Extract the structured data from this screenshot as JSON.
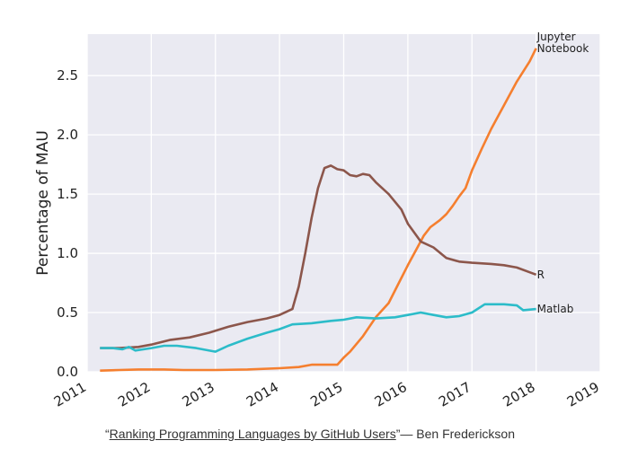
{
  "chart_data": {
    "type": "line",
    "title": "",
    "xlabel": "",
    "ylabel": "Percentage of MAU",
    "xlim": [
      2011,
      2019
    ],
    "ylim": [
      0,
      2.85
    ],
    "xticks": [
      "2011",
      "2012",
      "2013",
      "2014",
      "2015",
      "2016",
      "2017",
      "2018",
      "2019"
    ],
    "yticks": [
      "0.0",
      "0.5",
      "1.0",
      "1.5",
      "2.0",
      "2.5"
    ],
    "grid": true,
    "background": "#eaeaf2",
    "series": [
      {
        "name": "Jupyter Notebook",
        "label_lines": [
          "Jupyter",
          "Notebook"
        ],
        "color": "#f57f2f",
        "points": [
          [
            2011.2,
            0.01
          ],
          [
            2011.5,
            0.015
          ],
          [
            2011.8,
            0.02
          ],
          [
            2012.2,
            0.02
          ],
          [
            2012.5,
            0.015
          ],
          [
            2013.0,
            0.015
          ],
          [
            2013.5,
            0.02
          ],
          [
            2014.0,
            0.03
          ],
          [
            2014.3,
            0.04
          ],
          [
            2014.5,
            0.06
          ],
          [
            2014.75,
            0.06
          ],
          [
            2014.9,
            0.06
          ],
          [
            2015.0,
            0.12
          ],
          [
            2015.1,
            0.17
          ],
          [
            2015.3,
            0.3
          ],
          [
            2015.5,
            0.46
          ],
          [
            2015.7,
            0.58
          ],
          [
            2015.85,
            0.74
          ],
          [
            2016.0,
            0.9
          ],
          [
            2016.15,
            1.05
          ],
          [
            2016.25,
            1.15
          ],
          [
            2016.35,
            1.22
          ],
          [
            2016.5,
            1.28
          ],
          [
            2016.6,
            1.33
          ],
          [
            2016.7,
            1.4
          ],
          [
            2016.8,
            1.48
          ],
          [
            2016.9,
            1.55
          ],
          [
            2017.0,
            1.7
          ],
          [
            2017.15,
            1.88
          ],
          [
            2017.3,
            2.05
          ],
          [
            2017.5,
            2.25
          ],
          [
            2017.7,
            2.45
          ],
          [
            2017.9,
            2.62
          ],
          [
            2018.0,
            2.73
          ]
        ]
      },
      {
        "name": "R",
        "label_lines": [
          "R"
        ],
        "color": "#8c564b",
        "points": [
          [
            2011.2,
            0.2
          ],
          [
            2011.5,
            0.2
          ],
          [
            2011.8,
            0.21
          ],
          [
            2012.0,
            0.23
          ],
          [
            2012.3,
            0.27
          ],
          [
            2012.6,
            0.29
          ],
          [
            2012.9,
            0.33
          ],
          [
            2013.2,
            0.38
          ],
          [
            2013.5,
            0.42
          ],
          [
            2013.8,
            0.45
          ],
          [
            2014.0,
            0.48
          ],
          [
            2014.2,
            0.53
          ],
          [
            2014.3,
            0.72
          ],
          [
            2014.4,
            1.0
          ],
          [
            2014.5,
            1.3
          ],
          [
            2014.6,
            1.55
          ],
          [
            2014.7,
            1.72
          ],
          [
            2014.8,
            1.74
          ],
          [
            2014.9,
            1.71
          ],
          [
            2015.0,
            1.7
          ],
          [
            2015.1,
            1.66
          ],
          [
            2015.2,
            1.65
          ],
          [
            2015.3,
            1.67
          ],
          [
            2015.4,
            1.66
          ],
          [
            2015.5,
            1.6
          ],
          [
            2015.7,
            1.5
          ],
          [
            2015.9,
            1.37
          ],
          [
            2016.0,
            1.25
          ],
          [
            2016.2,
            1.1
          ],
          [
            2016.4,
            1.05
          ],
          [
            2016.6,
            0.96
          ],
          [
            2016.8,
            0.93
          ],
          [
            2017.0,
            0.92
          ],
          [
            2017.3,
            0.91
          ],
          [
            2017.5,
            0.9
          ],
          [
            2017.7,
            0.88
          ],
          [
            2017.9,
            0.84
          ],
          [
            2018.0,
            0.82
          ]
        ]
      },
      {
        "name": "Matlab",
        "label_lines": [
          "Matlab"
        ],
        "color": "#2cbcc9",
        "points": [
          [
            2011.2,
            0.2
          ],
          [
            2011.4,
            0.2
          ],
          [
            2011.55,
            0.19
          ],
          [
            2011.65,
            0.21
          ],
          [
            2011.75,
            0.18
          ],
          [
            2012.0,
            0.2
          ],
          [
            2012.2,
            0.22
          ],
          [
            2012.4,
            0.22
          ],
          [
            2012.7,
            0.2
          ],
          [
            2013.0,
            0.17
          ],
          [
            2013.2,
            0.22
          ],
          [
            2013.5,
            0.28
          ],
          [
            2013.8,
            0.33
          ],
          [
            2014.0,
            0.36
          ],
          [
            2014.2,
            0.4
          ],
          [
            2014.5,
            0.41
          ],
          [
            2014.8,
            0.43
          ],
          [
            2015.0,
            0.44
          ],
          [
            2015.2,
            0.46
          ],
          [
            2015.5,
            0.45
          ],
          [
            2015.8,
            0.46
          ],
          [
            2016.0,
            0.48
          ],
          [
            2016.2,
            0.5
          ],
          [
            2016.4,
            0.48
          ],
          [
            2016.6,
            0.46
          ],
          [
            2016.8,
            0.47
          ],
          [
            2017.0,
            0.5
          ],
          [
            2017.2,
            0.57
          ],
          [
            2017.5,
            0.57
          ],
          [
            2017.7,
            0.56
          ],
          [
            2017.8,
            0.52
          ],
          [
            2018.0,
            0.53
          ]
        ]
      }
    ]
  },
  "caption": {
    "quote_open": "“",
    "link_text": "Ranking Programming Languages by GitHub Users",
    "quote_close": "”",
    "author": "— Ben Frederickson"
  }
}
